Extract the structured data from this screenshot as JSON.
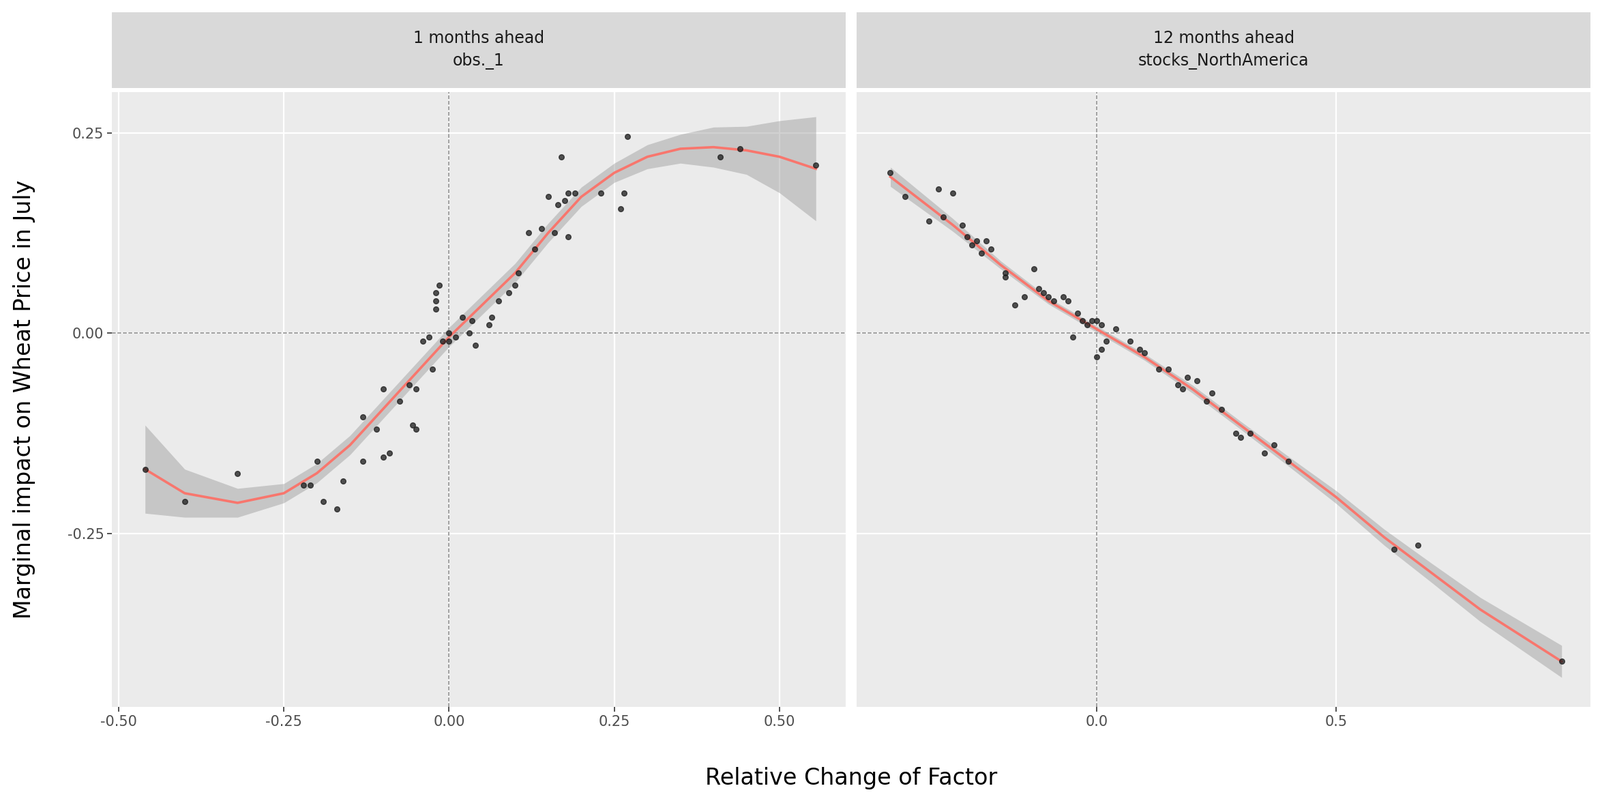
{
  "x_label": "Relative Change of Factor",
  "y_label": "Marginal impact on Wheat Price in July",
  "chart_data": [
    {
      "type": "scatter",
      "title": "1 months ahead\nobs._1",
      "xlim": [
        -0.51,
        0.6
      ],
      "ylim": [
        -0.467,
        0.301
      ],
      "xticks": [
        {
          "value": -0.5,
          "label": "-0.50"
        },
        {
          "value": -0.25,
          "label": "-0.25"
        },
        {
          "value": 0,
          "label": "0.00"
        },
        {
          "value": 0.25,
          "label": "0.25"
        },
        {
          "value": 0.5,
          "label": "0.50"
        }
      ],
      "yticks": [
        {
          "value": -0.25,
          "label": "-0.25"
        },
        {
          "value": 0,
          "label": "0.00"
        },
        {
          "value": 0.25,
          "label": "0.25"
        }
      ],
      "tick_labels": true,
      "grid": true,
      "ref_lines": {
        "x": 0,
        "y": 0
      },
      "series": [
        {
          "type": "scatter",
          "color": "#1a1a1a",
          "marker": "o",
          "x": [
            -0.46,
            -0.4,
            -0.32,
            -0.22,
            -0.21,
            -0.2,
            -0.19,
            -0.17,
            -0.16,
            -0.13,
            -0.13,
            -0.11,
            -0.1,
            -0.1,
            -0.09,
            -0.075,
            -0.06,
            -0.055,
            -0.05,
            -0.05,
            -0.04,
            -0.03,
            -0.025,
            -0.02,
            -0.02,
            -0.02,
            -0.015,
            -0.01,
            0.0,
            0.0,
            0.01,
            0.02,
            0.03,
            0.035,
            0.04,
            0.06,
            0.065,
            0.075,
            0.09,
            0.1,
            0.105,
            0.12,
            0.13,
            0.14,
            0.15,
            0.16,
            0.165,
            0.17,
            0.175,
            0.18,
            0.18,
            0.19,
            0.23,
            0.26,
            0.265,
            0.27,
            0.41,
            0.44,
            0.555
          ],
          "values": [
            -0.17,
            -0.21,
            -0.175,
            -0.19,
            -0.19,
            -0.16,
            -0.21,
            -0.22,
            -0.185,
            -0.105,
            -0.16,
            -0.12,
            -0.155,
            -0.07,
            -0.15,
            -0.085,
            -0.065,
            -0.115,
            -0.12,
            -0.07,
            -0.01,
            -0.005,
            -0.045,
            0.05,
            0.03,
            0.04,
            0.06,
            -0.01,
            -0.01,
            0.0,
            -0.005,
            0.02,
            0.0,
            0.015,
            -0.015,
            0.01,
            0.02,
            0.04,
            0.05,
            0.06,
            0.075,
            0.125,
            0.105,
            0.13,
            0.17,
            0.125,
            0.16,
            0.22,
            0.165,
            0.175,
            0.12,
            0.175,
            0.175,
            0.155,
            0.175,
            0.245,
            0.22,
            0.23,
            0.21
          ]
        },
        {
          "type": "line",
          "color": "#F8766D",
          "line_style": "solid",
          "x": [
            -0.46,
            -0.4,
            -0.32,
            -0.25,
            -0.2,
            -0.15,
            -0.1,
            -0.05,
            0.0,
            0.05,
            0.1,
            0.15,
            0.2,
            0.25,
            0.3,
            0.35,
            0.4,
            0.45,
            0.5,
            0.555
          ],
          "values": [
            -0.17,
            -0.2,
            -0.212,
            -0.2,
            -0.175,
            -0.14,
            -0.095,
            -0.05,
            -0.005,
            0.035,
            0.075,
            0.125,
            0.17,
            0.2,
            0.22,
            0.23,
            0.232,
            0.228,
            0.22,
            0.205
          ],
          "lower": [
            -0.225,
            -0.23,
            -0.23,
            -0.212,
            -0.187,
            -0.152,
            -0.107,
            -0.062,
            -0.017,
            0.023,
            0.063,
            0.113,
            0.158,
            0.188,
            0.205,
            0.212,
            0.207,
            0.198,
            0.175,
            0.14
          ],
          "upper": [
            -0.115,
            -0.17,
            -0.194,
            -0.188,
            -0.163,
            -0.128,
            -0.083,
            -0.038,
            0.007,
            0.047,
            0.087,
            0.137,
            0.182,
            0.212,
            0.235,
            0.248,
            0.257,
            0.258,
            0.265,
            0.27
          ]
        }
      ]
    },
    {
      "type": "scatter",
      "title": "12 months ahead\nstocks_NorthAmerica",
      "xlim": [
        -0.5,
        1.03
      ],
      "ylim": [
        -0.467,
        0.301
      ],
      "xticks": [
        {
          "value": 0,
          "label": "0.0"
        },
        {
          "value": 0.5,
          "label": "0.5"
        }
      ],
      "yticks": [
        {
          "value": -0.25,
          "label": "-0.25"
        },
        {
          "value": 0,
          "label": "0.00"
        },
        {
          "value": 0.25,
          "label": "0.25"
        }
      ],
      "tick_labels": "x",
      "grid": true,
      "ref_lines": {
        "x": 0,
        "y": 0
      },
      "series": [
        {
          "type": "scatter",
          "color": "#1a1a1a",
          "marker": "o",
          "x": [
            -0.43,
            -0.4,
            -0.35,
            -0.33,
            -0.32,
            -0.3,
            -0.28,
            -0.27,
            -0.26,
            -0.25,
            -0.24,
            -0.23,
            -0.22,
            -0.19,
            -0.19,
            -0.17,
            -0.15,
            -0.13,
            -0.12,
            -0.11,
            -0.1,
            -0.09,
            -0.07,
            -0.06,
            -0.05,
            -0.04,
            -0.03,
            -0.02,
            -0.01,
            0.0,
            0.01,
            0.0,
            0.01,
            0.02,
            0.04,
            0.07,
            0.09,
            0.1,
            0.13,
            0.15,
            0.17,
            0.18,
            0.19,
            0.21,
            0.23,
            0.24,
            0.26,
            0.29,
            0.3,
            0.32,
            0.35,
            0.37,
            0.4,
            0.62,
            0.67,
            0.97
          ],
          "values": [
            0.2,
            0.17,
            0.14,
            0.18,
            0.145,
            0.175,
            0.135,
            0.12,
            0.11,
            0.115,
            0.1,
            0.115,
            0.105,
            0.075,
            0.07,
            0.035,
            0.045,
            0.08,
            0.055,
            0.05,
            0.045,
            0.04,
            0.045,
            0.04,
            -0.005,
            0.025,
            0.015,
            0.01,
            0.015,
            0.015,
            -0.02,
            -0.03,
            0.01,
            -0.01,
            0.005,
            -0.01,
            -0.02,
            -0.025,
            -0.045,
            -0.045,
            -0.065,
            -0.07,
            -0.055,
            -0.06,
            -0.085,
            -0.075,
            -0.095,
            -0.125,
            -0.13,
            -0.125,
            -0.15,
            -0.14,
            -0.16,
            -0.27,
            -0.265,
            -0.41
          ]
        },
        {
          "type": "line",
          "color": "#F8766D",
          "line_style": "solid",
          "x": [
            -0.43,
            -0.3,
            -0.2,
            -0.1,
            0.0,
            0.1,
            0.2,
            0.3,
            0.4,
            0.5,
            0.6,
            0.7,
            0.8,
            0.97
          ],
          "values": [
            0.195,
            0.135,
            0.085,
            0.04,
            0.005,
            -0.03,
            -0.07,
            -0.115,
            -0.16,
            -0.205,
            -0.255,
            -0.3,
            -0.345,
            -0.41
          ],
          "lower": [
            0.183,
            0.127,
            0.08,
            0.036,
            0.001,
            -0.034,
            -0.075,
            -0.12,
            -0.166,
            -0.213,
            -0.265,
            -0.312,
            -0.36,
            -0.43
          ],
          "upper": [
            0.207,
            0.143,
            0.09,
            0.044,
            0.009,
            -0.026,
            -0.065,
            -0.11,
            -0.154,
            -0.197,
            -0.245,
            -0.288,
            -0.33,
            -0.39
          ]
        }
      ]
    }
  ]
}
